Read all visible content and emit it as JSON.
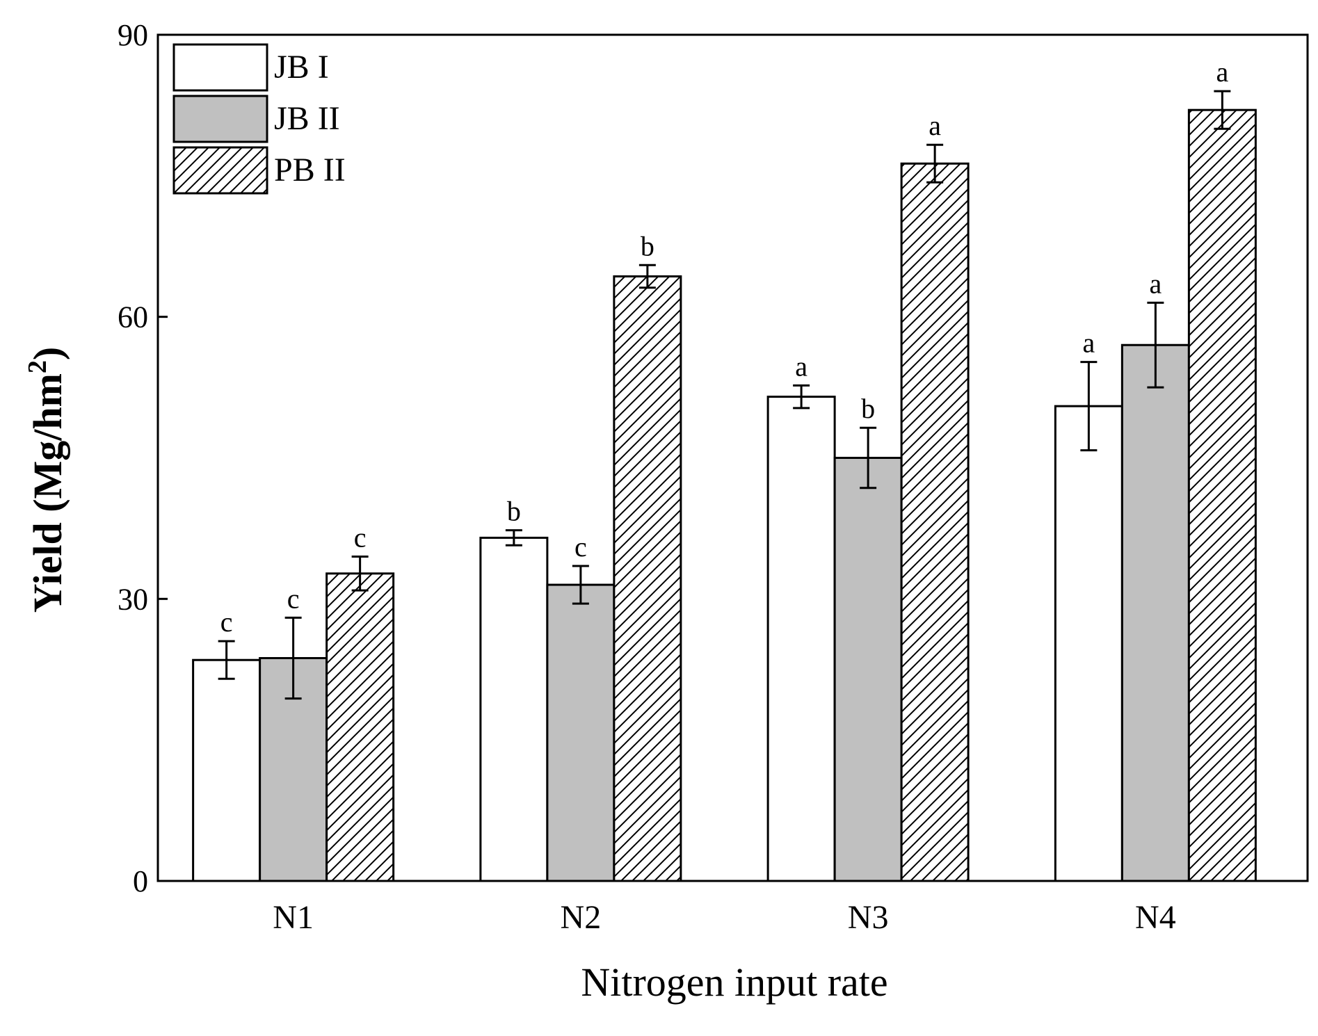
{
  "chart_data": {
    "type": "bar",
    "title": "",
    "xlabel": "Nitrogen input rate",
    "ylabel": "Yield (Mg/hm",
    "ylabel_superscript": "2",
    "ylabel_close": ")",
    "ylim": [
      0,
      90
    ],
    "yticks": [
      0,
      30,
      60,
      90
    ],
    "grid": false,
    "legend_position": "top-left",
    "categories": [
      "N1",
      "N2",
      "N3",
      "N4"
    ],
    "series": [
      {
        "name": "JB I",
        "fill": "white",
        "values": [
          23.5,
          36.5,
          51.5,
          50.5
        ],
        "errors": [
          2.0,
          0.8,
          1.2,
          4.7
        ],
        "sig": [
          "c",
          "b",
          "a",
          "a"
        ]
      },
      {
        "name": "JB II",
        "fill": "gray",
        "values": [
          23.7,
          31.5,
          45.0,
          57.0
        ],
        "errors": [
          4.3,
          2.0,
          3.2,
          4.5
        ],
        "sig": [
          "c",
          "c",
          "b",
          "a"
        ]
      },
      {
        "name": "PB II",
        "fill": "hatched",
        "values": [
          32.7,
          64.3,
          76.3,
          82.0
        ],
        "errors": [
          1.8,
          1.2,
          2.0,
          2.0
        ],
        "sig": [
          "c",
          "b",
          "a",
          "a"
        ]
      }
    ]
  },
  "colors": {
    "gray_fill": "#c0c0c0",
    "white_fill": "#ffffff",
    "stroke": "#000000"
  }
}
